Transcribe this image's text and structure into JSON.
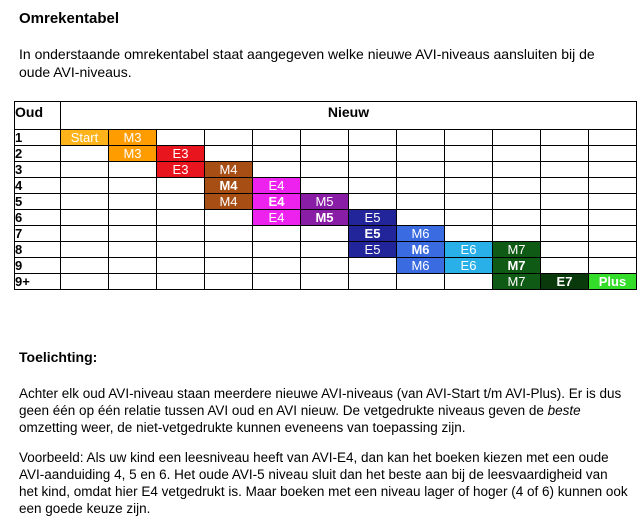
{
  "title": "Omrekentabel",
  "intro": "In onderstaande omrekentabel staat aangegeven welke nieuwe AVI-niveaus aansluiten bij de oude AVI-niveaus.",
  "table": {
    "header_old": "Oud",
    "header_new": "Nieuw",
    "columns": 12,
    "rows": [
      {
        "old": "1",
        "cells": [
          {
            "col": 0,
            "text": "Start",
            "color": "#FFB31A",
            "bold": false
          },
          {
            "col": 1,
            "text": "M3",
            "color": "#FF9C00",
            "bold": false
          }
        ]
      },
      {
        "old": "2",
        "cells": [
          {
            "col": 1,
            "text": "M3",
            "color": "#FF9C00",
            "bold": false
          },
          {
            "col": 2,
            "text": "E3",
            "color": "#E8141E",
            "bold": false
          }
        ]
      },
      {
        "old": "3",
        "cells": [
          {
            "col": 2,
            "text": "E3",
            "color": "#E8141E",
            "bold": false
          },
          {
            "col": 3,
            "text": "M4",
            "color": "#A74E14",
            "bold": false
          }
        ]
      },
      {
        "old": "4",
        "cells": [
          {
            "col": 3,
            "text": "M4",
            "color": "#A74E14",
            "bold": true
          },
          {
            "col": 4,
            "text": "E4",
            "color": "#EE22EE",
            "bold": false
          }
        ]
      },
      {
        "old": "5",
        "cells": [
          {
            "col": 3,
            "text": "M4",
            "color": "#A74E14",
            "bold": false
          },
          {
            "col": 4,
            "text": "E4",
            "color": "#EE22EE",
            "bold": true
          },
          {
            "col": 5,
            "text": "M5",
            "color": "#8A1DA5",
            "bold": false
          }
        ]
      },
      {
        "old": "6",
        "cells": [
          {
            "col": 4,
            "text": "E4",
            "color": "#EE22EE",
            "bold": false
          },
          {
            "col": 5,
            "text": "M5",
            "color": "#8A1DA5",
            "bold": true
          },
          {
            "col": 6,
            "text": "E5",
            "color": "#22249A",
            "bold": false
          }
        ]
      },
      {
        "old": "7",
        "cells": [
          {
            "col": 6,
            "text": "E5",
            "color": "#22249A",
            "bold": true
          },
          {
            "col": 7,
            "text": "M6",
            "color": "#3A6BE0",
            "bold": false
          }
        ]
      },
      {
        "old": "8",
        "cells": [
          {
            "col": 6,
            "text": "E5",
            "color": "#22249A",
            "bold": false
          },
          {
            "col": 7,
            "text": "M6",
            "color": "#3A6BE0",
            "bold": true
          },
          {
            "col": 8,
            "text": "E6",
            "color": "#2AB0E8",
            "bold": false
          },
          {
            "col": 9,
            "text": "M7",
            "color": "#0F5A14",
            "bold": false
          }
        ]
      },
      {
        "old": "9",
        "cells": [
          {
            "col": 7,
            "text": "M6",
            "color": "#3A6BE0",
            "bold": false
          },
          {
            "col": 8,
            "text": "E6",
            "color": "#2AB0E8",
            "bold": false
          },
          {
            "col": 9,
            "text": "M7",
            "color": "#0F5A14",
            "bold": true
          }
        ]
      },
      {
        "old": "9+",
        "cells": [
          {
            "col": 9,
            "text": "M7",
            "color": "#0F5A14",
            "bold": false
          },
          {
            "col": 10,
            "text": "E7",
            "color": "#0A3A0C",
            "bold": true
          },
          {
            "col": 11,
            "text": "Plus",
            "color": "#33DD2A",
            "bold": true
          }
        ]
      }
    ]
  },
  "toelichting_heading": "Toelichting:",
  "paragraph1": {
    "before": "Achter elk oud AVI-niveau staan meerdere nieuwe AVI-niveaus (van AVI-Start t/m AVI-Plus). Er is dus geen één op één relatie tussen AVI oud en AVI nieuw. De vetgedrukte niveaus geven de ",
    "emphasis": "beste",
    "after": " omzetting weer, de niet-vetgedrukte kunnen eveneens van toepassing zijn."
  },
  "paragraph2": "Voorbeeld: Als uw kind een leesniveau heeft van AVI-E4, dan kan het boeken kiezen met een oude AVI-aanduiding 4, 5 en 6. Het oude AVI-5 niveau sluit dan het beste aan bij de leesvaardigheid van het kind, omdat hier E4 vetgedrukt is. Maar boeken met een niveau lager of hoger (4 of 6) kunnen ook een goede keuze zijn."
}
